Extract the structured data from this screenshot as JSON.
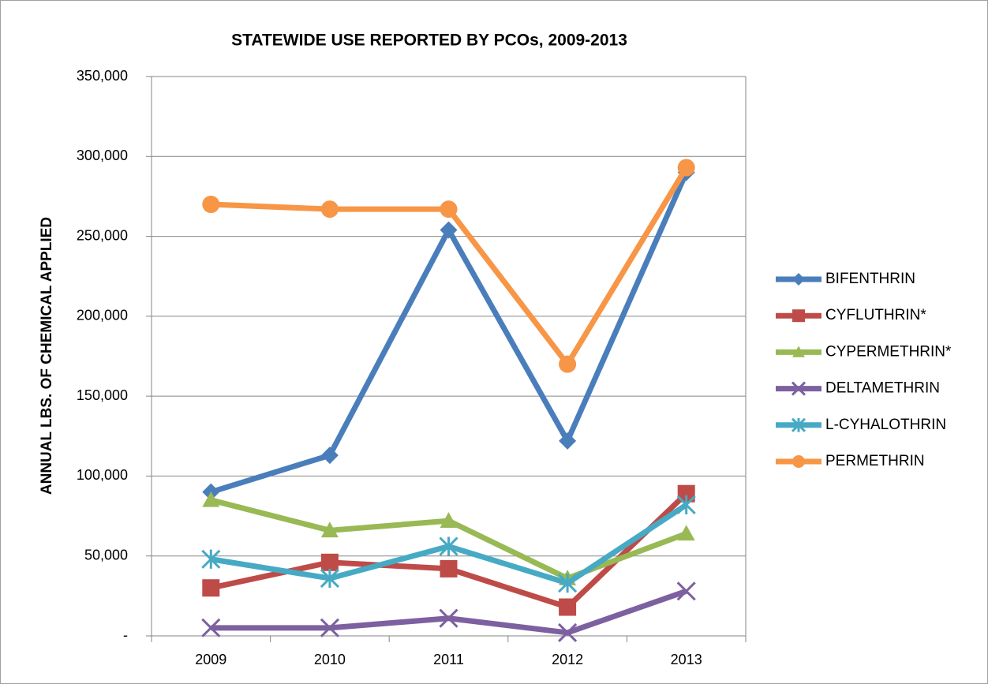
{
  "chart_data": {
    "type": "line",
    "title": "STATEWIDE USE REPORTED BY PCOs, 2009-2013",
    "y_label": "ANNUAL LBS. OF CHEMICAL APPLIED",
    "categories": [
      "2009",
      "2010",
      "2011",
      "2012",
      "2013"
    ],
    "ylim": [
      0,
      350000
    ],
    "yticks": [
      {
        "value": 0,
        "label": "-"
      },
      {
        "value": 50000,
        "label": "50,000"
      },
      {
        "value": 100000,
        "label": "100,000"
      },
      {
        "value": 150000,
        "label": "150,000"
      },
      {
        "value": 200000,
        "label": "200,000"
      },
      {
        "value": 250000,
        "label": "250,000"
      },
      {
        "value": 300000,
        "label": "300,000"
      },
      {
        "value": 350000,
        "label": "350,000"
      }
    ],
    "grid": true,
    "legend": "right",
    "series": [
      {
        "name": "BIFENTHRIN",
        "color": "#4a7ebb",
        "marker": "diamond",
        "values": [
          90000,
          113000,
          254000,
          122000,
          290000
        ]
      },
      {
        "name": "CYFLUTHRIN*",
        "color": "#be4b48",
        "marker": "square",
        "values": [
          30000,
          46000,
          42000,
          18000,
          89000
        ]
      },
      {
        "name": "CYPERMETHRIN*",
        "color": "#98b954",
        "marker": "triangle",
        "values": [
          85000,
          66000,
          72000,
          36000,
          64000
        ]
      },
      {
        "name": "DELTAMETHRIN",
        "color": "#7d60a0",
        "marker": "x",
        "values": [
          5000,
          5000,
          11000,
          2000,
          28000
        ]
      },
      {
        "name": "L-CYHALOTHRIN",
        "color": "#46aac5",
        "marker": "star",
        "values": [
          48000,
          36000,
          56000,
          33000,
          82000
        ]
      },
      {
        "name": "PERMETHRIN",
        "color": "#f79646",
        "marker": "circle",
        "values": [
          270000,
          267000,
          267000,
          170000,
          293000
        ]
      }
    ]
  }
}
